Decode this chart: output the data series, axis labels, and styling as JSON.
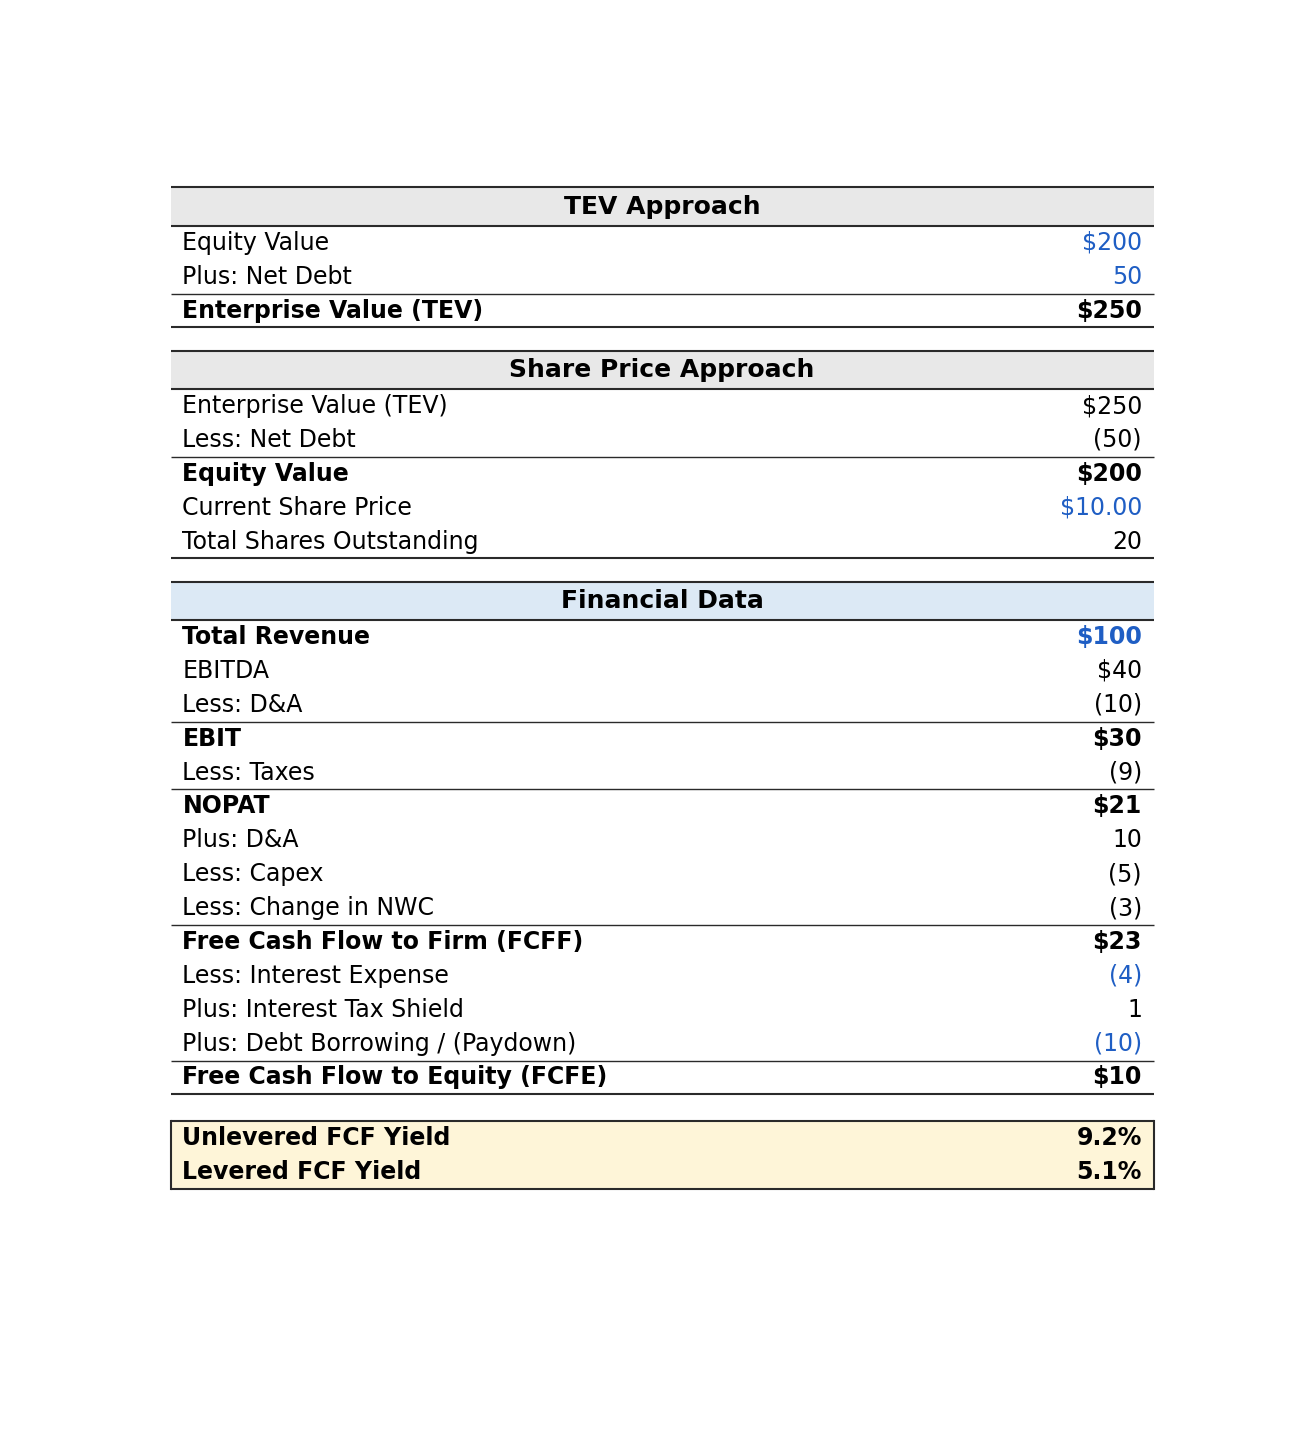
{
  "sections": [
    {
      "header": "TEV Approach",
      "header_bg": "#e8e8e8",
      "rows": [
        {
          "label": "Equity Value",
          "value": "$200",
          "bold": false,
          "value_color": "#1f5ec4",
          "bottom_border": false,
          "bold_bottom": false
        },
        {
          "label": "Plus: Net Debt",
          "value": "50",
          "bold": false,
          "value_color": "#1f5ec4",
          "bottom_border": true,
          "bold_bottom": false
        },
        {
          "label": "Enterprise Value (TEV)",
          "value": "$250",
          "bold": true,
          "value_color": "#000000",
          "bottom_border": false,
          "bold_bottom": false
        }
      ]
    },
    {
      "header": "Share Price Approach",
      "header_bg": "#e8e8e8",
      "rows": [
        {
          "label": "Enterprise Value (TEV)",
          "value": "$250",
          "bold": false,
          "value_color": "#000000",
          "bottom_border": false,
          "bold_bottom": false
        },
        {
          "label": "Less: Net Debt",
          "value": "(50)",
          "bold": false,
          "value_color": "#000000",
          "bottom_border": true,
          "bold_bottom": false
        },
        {
          "label": "Equity Value",
          "value": "$200",
          "bold": true,
          "value_color": "#000000",
          "bottom_border": false,
          "bold_bottom": false
        },
        {
          "label": "Current Share Price",
          "value": "$10.00",
          "bold": false,
          "value_color": "#1f5ec4",
          "bottom_border": false,
          "bold_bottom": false
        },
        {
          "label": "Total Shares Outstanding",
          "value": "20",
          "bold": false,
          "value_color": "#000000",
          "bottom_border": false,
          "bold_bottom": false
        }
      ]
    },
    {
      "header": "Financial Data",
      "header_bg": "#dce9f5",
      "rows": [
        {
          "label": "Total Revenue",
          "value": "$100",
          "bold": true,
          "value_color": "#1f5ec4",
          "bottom_border": false,
          "bold_bottom": false
        },
        {
          "label": "EBITDA",
          "value": "$40",
          "bold": false,
          "value_color": "#000000",
          "bottom_border": false,
          "bold_bottom": false
        },
        {
          "label": "Less: D&A",
          "value": "(10)",
          "bold": false,
          "value_color": "#000000",
          "bottom_border": true,
          "bold_bottom": false
        },
        {
          "label": "EBIT",
          "value": "$30",
          "bold": true,
          "value_color": "#000000",
          "bottom_border": false,
          "bold_bottom": false
        },
        {
          "label": "Less: Taxes",
          "value": "(9)",
          "bold": false,
          "value_color": "#000000",
          "bottom_border": true,
          "bold_bottom": false
        },
        {
          "label": "NOPAT",
          "value": "$21",
          "bold": true,
          "value_color": "#000000",
          "bottom_border": false,
          "bold_bottom": false
        },
        {
          "label": "Plus: D&A",
          "value": "10",
          "bold": false,
          "value_color": "#000000",
          "bottom_border": false,
          "bold_bottom": false
        },
        {
          "label": "Less: Capex",
          "value": "(5)",
          "bold": false,
          "value_color": "#000000",
          "bottom_border": false,
          "bold_bottom": false
        },
        {
          "label": "Less: Change in NWC",
          "value": "(3)",
          "bold": false,
          "value_color": "#000000",
          "bottom_border": true,
          "bold_bottom": false
        },
        {
          "label": "Free Cash Flow to Firm (FCFF)",
          "value": "$23",
          "bold": true,
          "value_color": "#000000",
          "bottom_border": false,
          "bold_bottom": false
        },
        {
          "label": "Less: Interest Expense",
          "value": "(4)",
          "bold": false,
          "value_color": "#1f5ec4",
          "bottom_border": false,
          "bold_bottom": false
        },
        {
          "label": "Plus: Interest Tax Shield",
          "value": "1",
          "bold": false,
          "value_color": "#000000",
          "bottom_border": false,
          "bold_bottom": false
        },
        {
          "label": "Plus: Debt Borrowing / (Paydown)",
          "value": "(10)",
          "bold": false,
          "value_color": "#1f5ec4",
          "bottom_border": true,
          "bold_bottom": false
        },
        {
          "label": "Free Cash Flow to Equity (FCFE)",
          "value": "$10",
          "bold": true,
          "value_color": "#000000",
          "bottom_border": false,
          "bold_bottom": false
        }
      ]
    }
  ],
  "yield_rows": [
    {
      "label": "Unlevered FCF Yield",
      "value": "9.2%"
    },
    {
      "label": "Levered FCF Yield",
      "value": "5.1%"
    }
  ],
  "yield_bg": "#fef5d8",
  "outer_border_color": "#2a2a2a",
  "inner_border_color": "#2a2a2a",
  "font_size": 17,
  "header_font_size": 18
}
